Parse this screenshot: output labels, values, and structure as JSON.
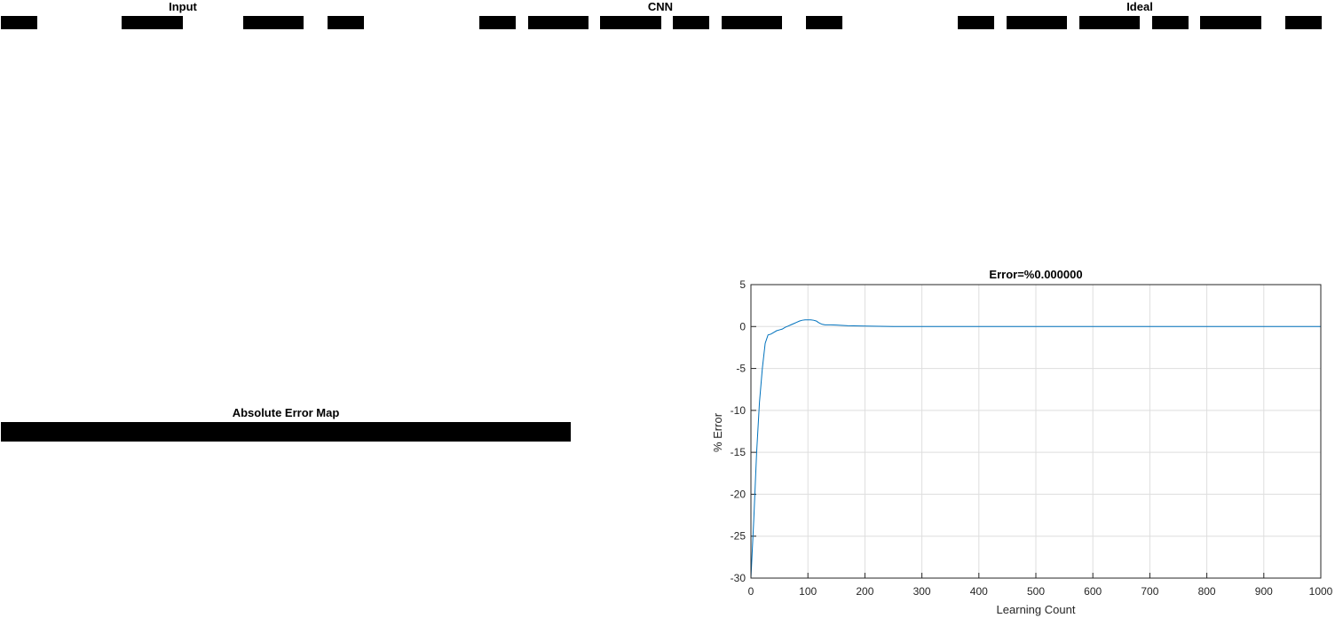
{
  "panels": {
    "input": {
      "title": "Input"
    },
    "cnn": {
      "title": "CNN"
    },
    "ideal": {
      "title": "Ideal"
    },
    "error_map": {
      "title": "Absolute Error Map"
    }
  },
  "chart_data": {
    "type": "line",
    "title": "Error=%0.000000",
    "xlabel": "Learning Count",
    "ylabel": "% Error",
    "xlim": [
      0,
      1000
    ],
    "ylim": [
      -30,
      5
    ],
    "xticks": [
      0,
      100,
      200,
      300,
      400,
      500,
      600,
      700,
      800,
      900,
      1000
    ],
    "yticks": [
      -30,
      -25,
      -20,
      -15,
      -10,
      -5,
      0,
      5
    ],
    "grid": true,
    "series": [
      {
        "color": "#0072BD",
        "x": [
          0,
          5,
          10,
          15,
          20,
          25,
          30,
          35,
          40,
          45,
          50,
          55,
          60,
          65,
          70,
          75,
          80,
          85,
          90,
          95,
          100,
          105,
          110,
          115,
          118,
          122,
          126,
          130,
          140,
          150,
          170,
          200,
          250,
          300,
          400,
          500,
          600,
          700,
          800,
          900,
          1000
        ],
        "y": [
          -30,
          -23,
          -15,
          -9,
          -5,
          -2,
          -1,
          -0.9,
          -0.7,
          -0.5,
          -0.4,
          -0.3,
          -0.1,
          0.05,
          0.2,
          0.35,
          0.5,
          0.65,
          0.75,
          0.8,
          0.8,
          0.8,
          0.75,
          0.65,
          0.5,
          0.35,
          0.25,
          0.2,
          0.2,
          0.18,
          0.1,
          0.05,
          0.01,
          0,
          0,
          0,
          0,
          0,
          0,
          0,
          0
        ]
      }
    ]
  }
}
